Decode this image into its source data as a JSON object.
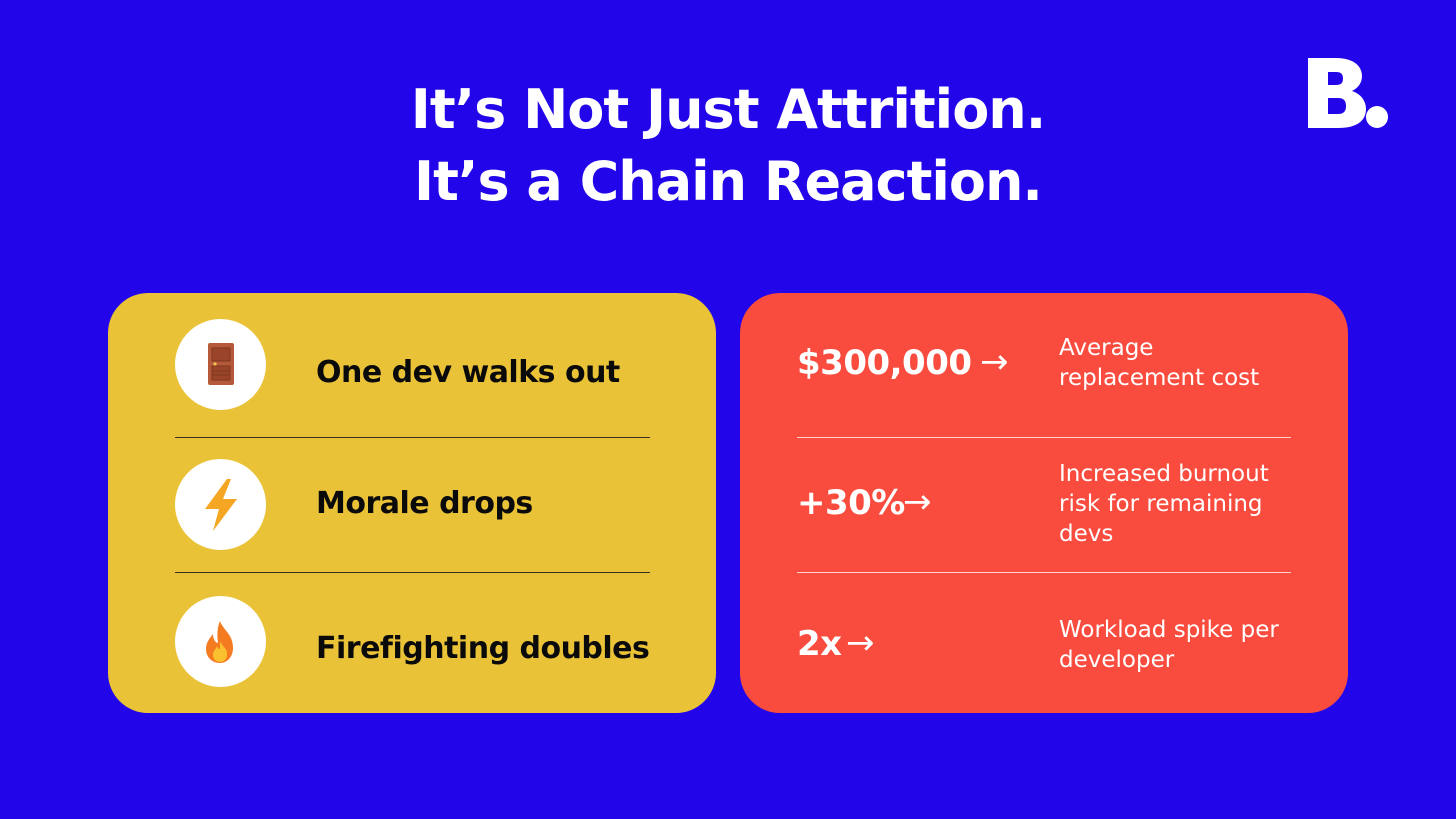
{
  "title": {
    "line1": "It’s Not Just Attrition.",
    "line2": "It’s a Chain Reaction."
  },
  "logo": {
    "letter": "B."
  },
  "left_card": {
    "items": [
      {
        "icon": "door-icon",
        "label": "One dev walks out"
      },
      {
        "icon": "lightning-icon",
        "label": "Morale drops"
      },
      {
        "icon": "fire-icon",
        "label": "Firefighting doubles"
      }
    ]
  },
  "right_card": {
    "items": [
      {
        "stat": "$300,000",
        "arrow": "→",
        "desc": "Average replacement cost"
      },
      {
        "stat": "+30%",
        "arrow": "→",
        "desc": "Increased burnout risk for remaining devs"
      },
      {
        "stat": "2x",
        "arrow": "→",
        "desc": "Workload spike per developer"
      }
    ]
  },
  "colors": {
    "background": "#2205E8",
    "left_card": "#E9C237",
    "right_card": "#F94C3E",
    "text_light": "#FFFFFF",
    "text_dark": "#0A0A0A"
  }
}
